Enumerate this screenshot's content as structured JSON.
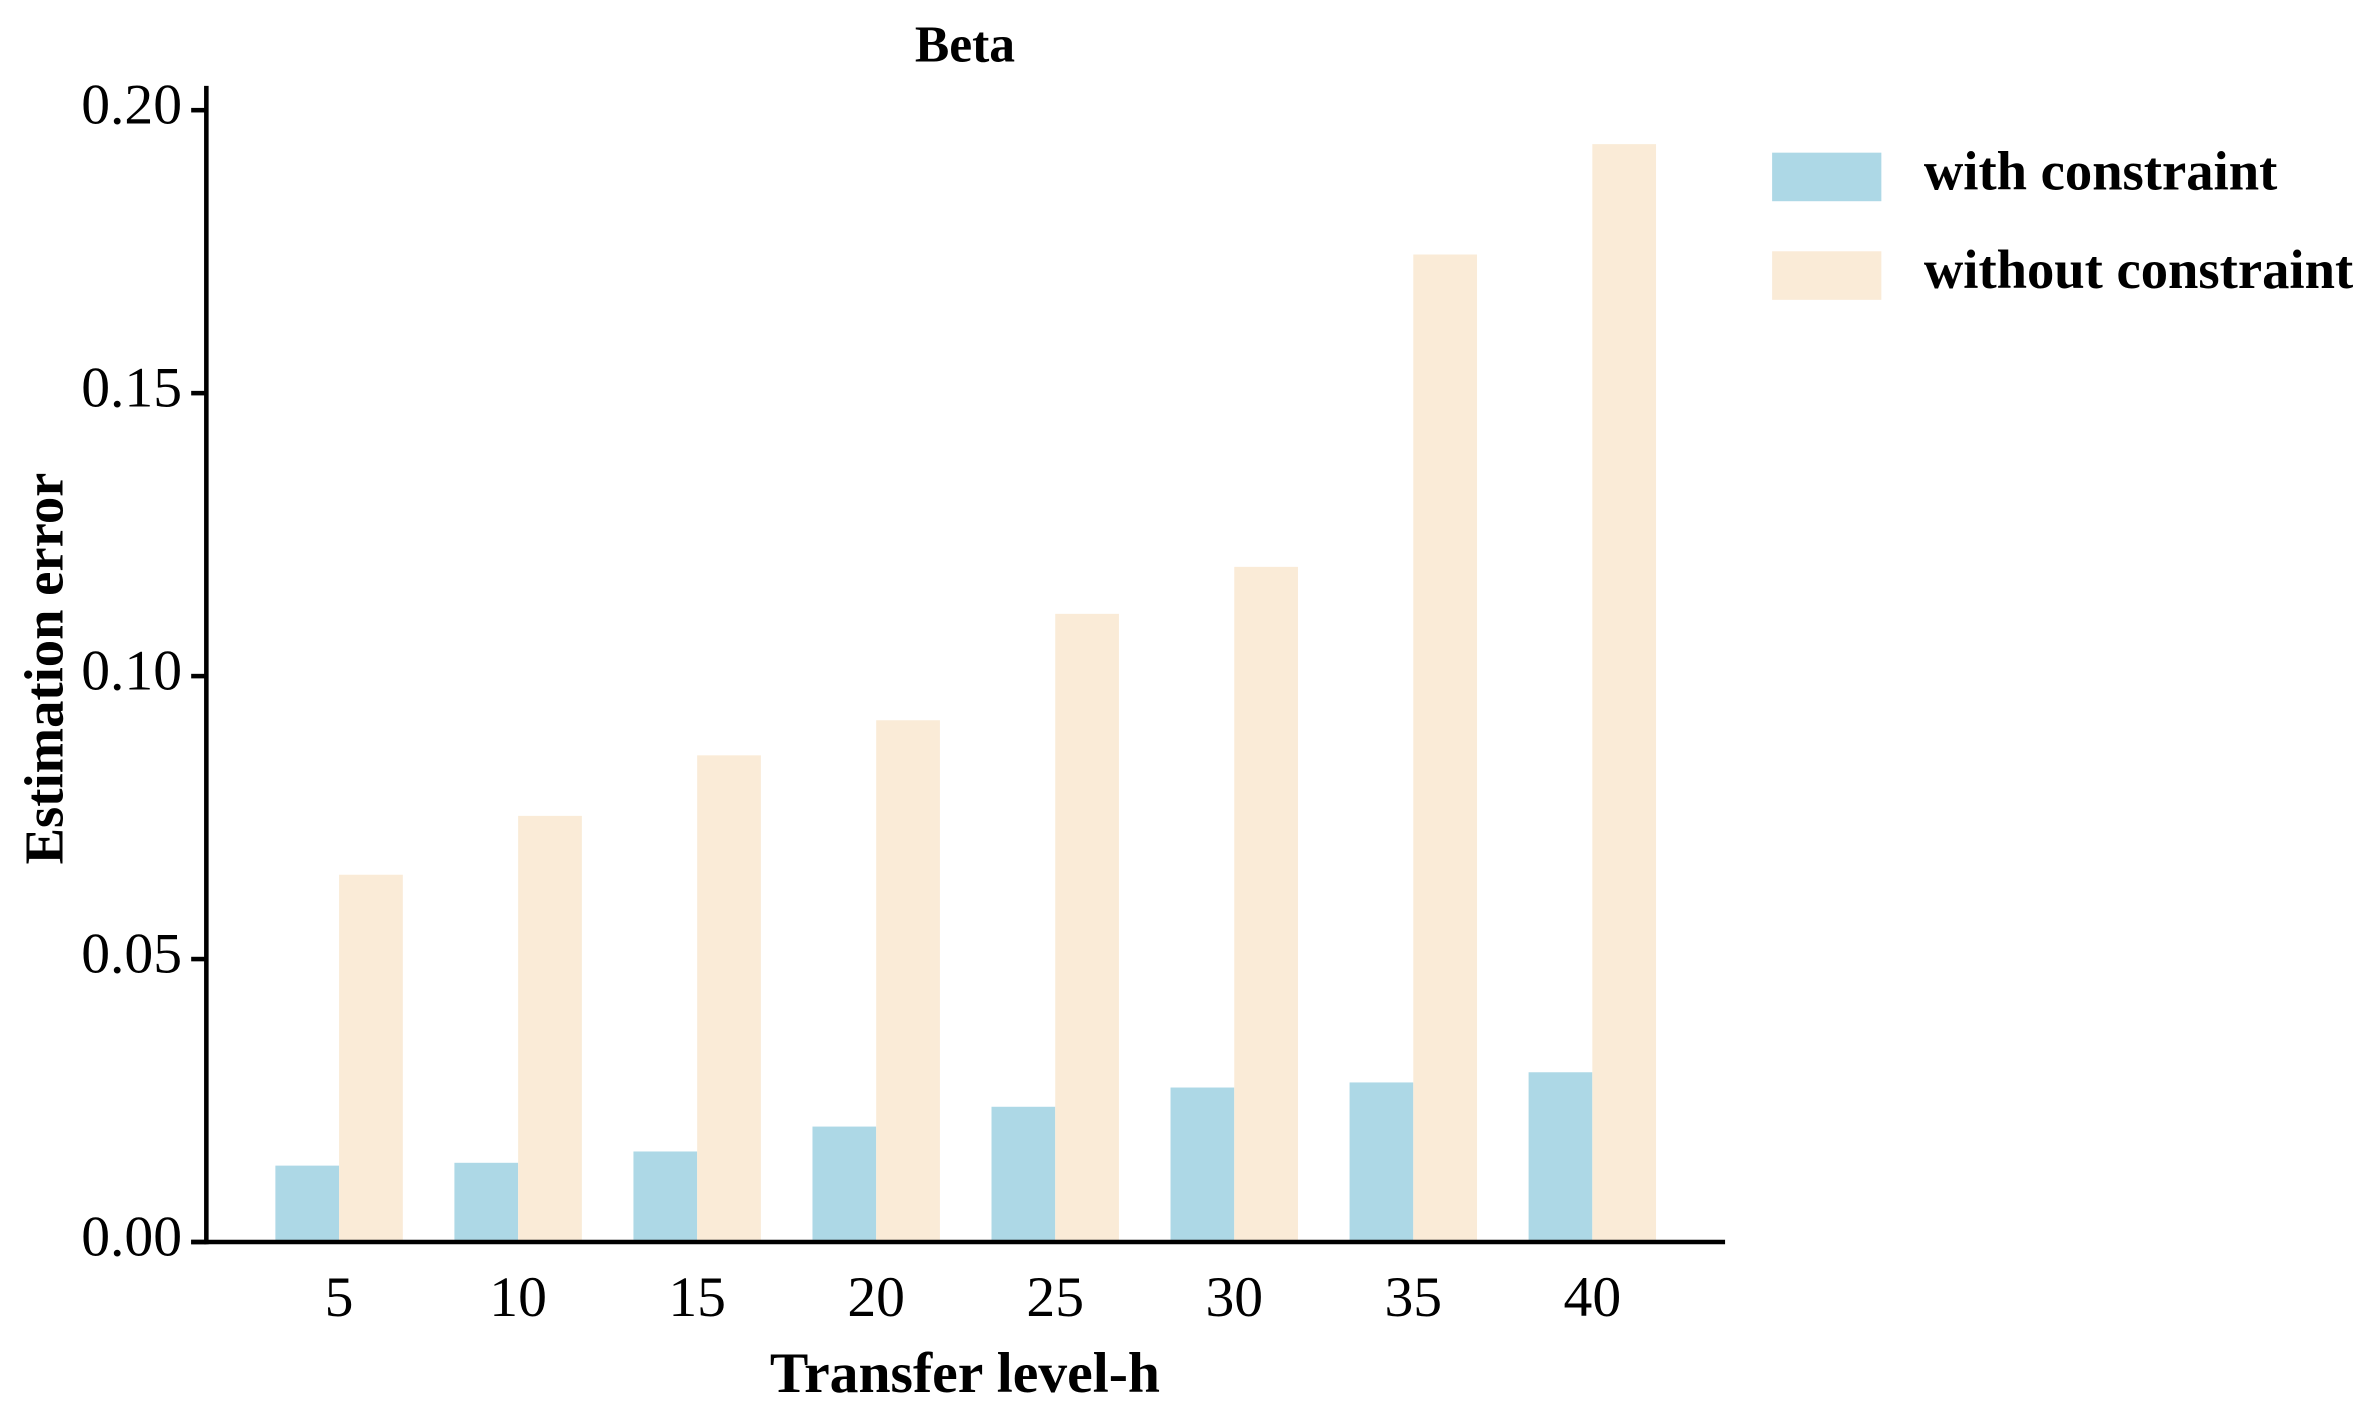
{
  "chart_data": {
    "type": "bar",
    "title": "Beta",
    "x_label": "Transfer level-h",
    "y_label": "Estimation error",
    "categories": [
      "5",
      "10",
      "15",
      "20",
      "25",
      "30",
      "35",
      "40"
    ],
    "series": [
      {
        "name": "with constraint",
        "color": "#add8e6",
        "values": [
          0.0135,
          0.014,
          0.016,
          0.0204,
          0.0239,
          0.0273,
          0.0282,
          0.03
        ]
      },
      {
        "name": "without constraint",
        "color": "#faebd7",
        "values": [
          0.0649,
          0.0753,
          0.086,
          0.0922,
          0.111,
          0.1193,
          0.1745,
          0.194
        ]
      }
    ],
    "ylim": [
      0,
      0.2
    ],
    "yticks": [
      {
        "value": 0,
        "label": "0.00"
      },
      {
        "value": 0.05,
        "label": "0.05"
      },
      {
        "value": 0.1,
        "label": "0.10"
      },
      {
        "value": 0.15,
        "label": "0.15"
      },
      {
        "value": 0.2,
        "label": "0.20"
      }
    ],
    "legend": "upper right outside"
  }
}
